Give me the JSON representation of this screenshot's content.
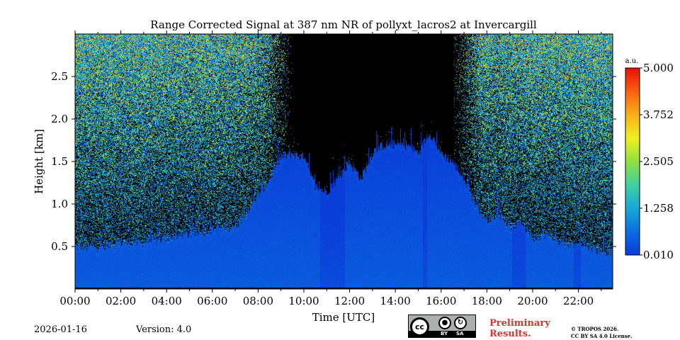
{
  "chart_data": {
    "type": "heatmap",
    "title": "Range Corrected Signal at 387 nm NR of pollyxt_lacros2 at Invercargill",
    "xlabel": "Time [UTC]",
    "ylabel": "Height [km]",
    "xlim_hours": [
      0,
      23.5
    ],
    "ylim_km": [
      0,
      3.0
    ],
    "x_ticks": [
      {
        "value": 0,
        "label": "00:00"
      },
      {
        "value": 2,
        "label": "02:00"
      },
      {
        "value": 4,
        "label": "04:00"
      },
      {
        "value": 6,
        "label": "06:00"
      },
      {
        "value": 8,
        "label": "08:00"
      },
      {
        "value": 10,
        "label": "10:00"
      },
      {
        "value": 12,
        "label": "12:00"
      },
      {
        "value": 14,
        "label": "14:00"
      },
      {
        "value": 16,
        "label": "16:00"
      },
      {
        "value": 18,
        "label": "18:00"
      },
      {
        "value": 20,
        "label": "20:00"
      },
      {
        "value": 22,
        "label": "22:00"
      }
    ],
    "y_ticks": [
      {
        "value": 0.5,
        "label": "0.5"
      },
      {
        "value": 1.0,
        "label": "1.0"
      },
      {
        "value": 1.5,
        "label": "1.5"
      },
      {
        "value": 2.0,
        "label": "2.0"
      },
      {
        "value": 2.5,
        "label": "2.5"
      }
    ],
    "colorbar": {
      "unit_label": "a.u.",
      "min": 0.01,
      "max": 5.0,
      "ticks": [
        {
          "value": 0.01,
          "label": "0.010"
        },
        {
          "value": 1.258,
          "label": "1.258"
        },
        {
          "value": 2.505,
          "label": "2.505"
        },
        {
          "value": 3.752,
          "label": "3.752"
        },
        {
          "value": 5.0,
          "label": "5.000"
        }
      ],
      "colormap": [
        "#0a3cd8",
        "#0a6ee0",
        "#18a8d8",
        "#40d0a0",
        "#90e040",
        "#f0f020",
        "#f8b018",
        "#f86010",
        "#e81008"
      ]
    },
    "cloud_top_profile": {
      "times_h": [
        0,
        1,
        2,
        3,
        4,
        5,
        6,
        7,
        7.5,
        8,
        8.5,
        9,
        9.5,
        10,
        10.5,
        11,
        11.5,
        12,
        12.5,
        13,
        13.5,
        14,
        14.5,
        15,
        15.5,
        16,
        16.5,
        17,
        17.5,
        18,
        18.5,
        19,
        19.5,
        20,
        20.5,
        21,
        21.5,
        22,
        22.5,
        23,
        23.5
      ],
      "heights_km": [
        0.5,
        0.5,
        0.55,
        0.55,
        0.6,
        0.65,
        0.7,
        0.75,
        0.9,
        1.1,
        1.3,
        1.55,
        1.6,
        1.55,
        1.2,
        1.15,
        1.3,
        1.5,
        1.3,
        1.6,
        1.7,
        1.7,
        1.7,
        1.6,
        1.85,
        1.6,
        1.5,
        1.3,
        1.0,
        0.8,
        0.9,
        0.7,
        0.8,
        0.6,
        0.65,
        0.6,
        0.5,
        0.55,
        0.5,
        0.45,
        0.45
      ]
    },
    "noise_clear_interval_h": [
      9.5,
      16.5
    ],
    "low_signal_intervals_h": [
      [
        10.7,
        11.8
      ],
      [
        15.2,
        15.4
      ],
      [
        19.1,
        19.7
      ],
      [
        21.8,
        22.1
      ]
    ]
  },
  "footer": {
    "date": "2026-01-16",
    "version": "Version: 4.0",
    "preliminary_line1": "Preliminary",
    "preliminary_line2": "Results.",
    "copyright_line1": "© TROPOS 2026.",
    "copyright_line2": "CC BY SA 4.0 License."
  },
  "license_badge": {
    "cc": "cc",
    "by": "BY",
    "sa": "SA"
  }
}
